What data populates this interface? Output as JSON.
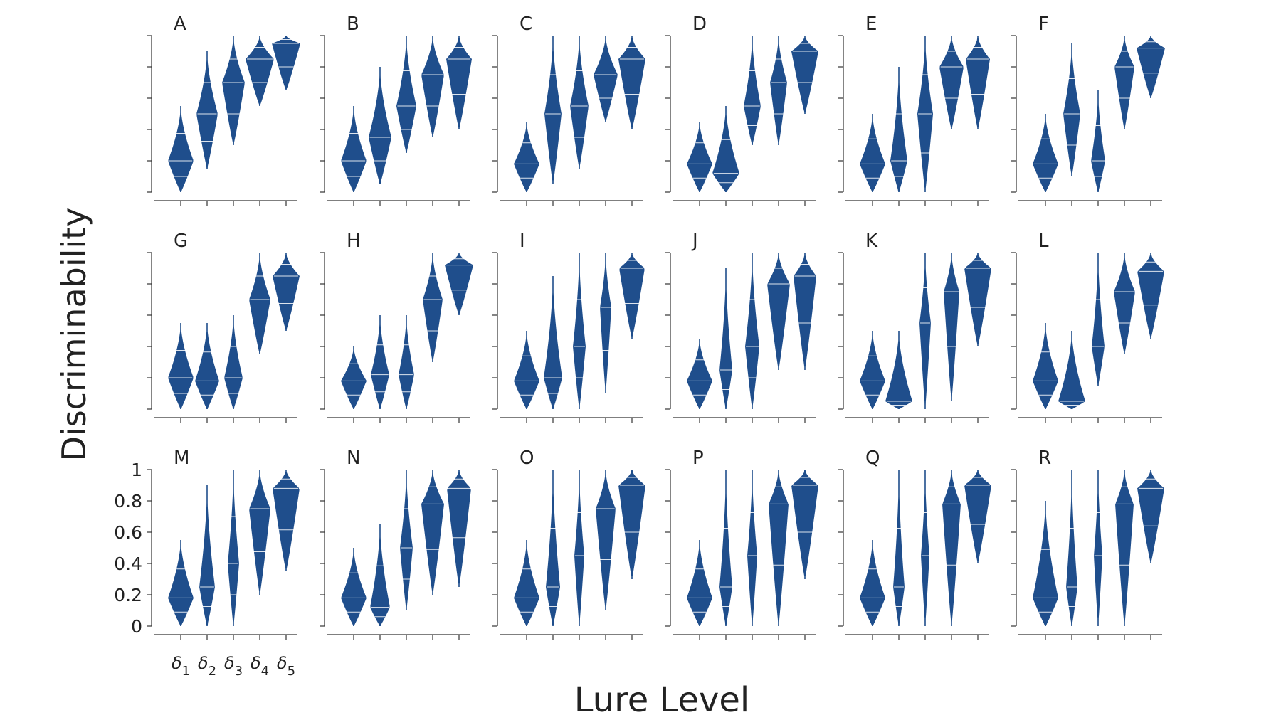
{
  "chart_data": {
    "type": "violin",
    "title": "",
    "xlabel": "Lure Level",
    "ylabel": "Discriminability",
    "ylim": [
      0,
      1
    ],
    "yticks": [
      "0",
      "0.2",
      "0.4",
      "0.6",
      "0.8",
      "1"
    ],
    "categories": [
      "δ1",
      "δ2",
      "δ3",
      "δ4",
      "δ5"
    ],
    "category_labels": [
      {
        "base": "δ",
        "sub": "1"
      },
      {
        "base": "δ",
        "sub": "2"
      },
      {
        "base": "δ",
        "sub": "3"
      },
      {
        "base": "δ",
        "sub": "4"
      },
      {
        "base": "δ",
        "sub": "5"
      }
    ],
    "color": "#1f4e8c",
    "panels": [
      {
        "label": "A",
        "violins": [
          {
            "min": 0.0,
            "max": 0.55,
            "median": 0.2,
            "width": 0.9
          },
          {
            "min": 0.15,
            "max": 0.9,
            "median": 0.5,
            "width": 0.75
          },
          {
            "min": 0.3,
            "max": 1.0,
            "median": 0.7,
            "width": 0.8
          },
          {
            "min": 0.55,
            "max": 1.0,
            "median": 0.85,
            "width": 1.0
          },
          {
            "min": 0.65,
            "max": 1.0,
            "median": 0.95,
            "width": 1.0
          }
        ]
      },
      {
        "label": "B",
        "violins": [
          {
            "min": 0.0,
            "max": 0.55,
            "median": 0.2,
            "width": 0.9
          },
          {
            "min": 0.05,
            "max": 0.8,
            "median": 0.35,
            "width": 0.8
          },
          {
            "min": 0.25,
            "max": 1.0,
            "median": 0.55,
            "width": 0.7
          },
          {
            "min": 0.35,
            "max": 1.0,
            "median": 0.75,
            "width": 0.8
          },
          {
            "min": 0.4,
            "max": 1.0,
            "median": 0.85,
            "width": 0.9
          }
        ]
      },
      {
        "label": "C",
        "violins": [
          {
            "min": 0.0,
            "max": 0.45,
            "median": 0.18,
            "width": 0.9
          },
          {
            "min": 0.05,
            "max": 1.0,
            "median": 0.5,
            "width": 0.6
          },
          {
            "min": 0.15,
            "max": 1.0,
            "median": 0.55,
            "width": 0.65
          },
          {
            "min": 0.45,
            "max": 1.0,
            "median": 0.75,
            "width": 0.85
          },
          {
            "min": 0.4,
            "max": 1.0,
            "median": 0.85,
            "width": 0.95
          }
        ]
      },
      {
        "label": "D",
        "violins": [
          {
            "min": 0.0,
            "max": 0.45,
            "median": 0.18,
            "width": 0.9
          },
          {
            "min": 0.0,
            "max": 0.55,
            "median": 0.12,
            "width": 0.95
          },
          {
            "min": 0.3,
            "max": 1.0,
            "median": 0.55,
            "width": 0.6
          },
          {
            "min": 0.3,
            "max": 1.0,
            "median": 0.7,
            "width": 0.6
          },
          {
            "min": 0.5,
            "max": 1.0,
            "median": 0.9,
            "width": 0.95
          }
        ]
      },
      {
        "label": "E",
        "violins": [
          {
            "min": 0.0,
            "max": 0.5,
            "median": 0.18,
            "width": 0.9
          },
          {
            "min": 0.0,
            "max": 0.8,
            "median": 0.2,
            "width": 0.6
          },
          {
            "min": 0.0,
            "max": 1.0,
            "median": 0.5,
            "width": 0.55
          },
          {
            "min": 0.4,
            "max": 1.0,
            "median": 0.8,
            "width": 0.85
          },
          {
            "min": 0.4,
            "max": 1.0,
            "median": 0.85,
            "width": 0.85
          }
        ]
      },
      {
        "label": "F",
        "violins": [
          {
            "min": 0.0,
            "max": 0.5,
            "median": 0.18,
            "width": 0.9
          },
          {
            "min": 0.1,
            "max": 0.95,
            "median": 0.5,
            "width": 0.6
          },
          {
            "min": 0.0,
            "max": 0.65,
            "median": 0.2,
            "width": 0.5
          },
          {
            "min": 0.4,
            "max": 1.0,
            "median": 0.8,
            "width": 0.7
          },
          {
            "min": 0.6,
            "max": 1.0,
            "median": 0.92,
            "width": 1.0
          }
        ]
      },
      {
        "label": "G",
        "violins": [
          {
            "min": 0.0,
            "max": 0.55,
            "median": 0.2,
            "width": 0.9
          },
          {
            "min": 0.0,
            "max": 0.55,
            "median": 0.18,
            "width": 0.85
          },
          {
            "min": 0.0,
            "max": 0.6,
            "median": 0.2,
            "width": 0.65
          },
          {
            "min": 0.35,
            "max": 1.0,
            "median": 0.7,
            "width": 0.75
          },
          {
            "min": 0.5,
            "max": 1.0,
            "median": 0.85,
            "width": 0.95
          }
        ]
      },
      {
        "label": "H",
        "violins": [
          {
            "min": 0.0,
            "max": 0.4,
            "median": 0.18,
            "width": 0.9
          },
          {
            "min": 0.0,
            "max": 0.6,
            "median": 0.22,
            "width": 0.65
          },
          {
            "min": 0.0,
            "max": 0.6,
            "median": 0.22,
            "width": 0.55
          },
          {
            "min": 0.3,
            "max": 1.0,
            "median": 0.7,
            "width": 0.7
          },
          {
            "min": 0.6,
            "max": 1.0,
            "median": 0.92,
            "width": 1.0
          }
        ]
      },
      {
        "label": "I",
        "violins": [
          {
            "min": 0.0,
            "max": 0.5,
            "median": 0.18,
            "width": 0.9
          },
          {
            "min": 0.0,
            "max": 0.85,
            "median": 0.2,
            "width": 0.65
          },
          {
            "min": 0.0,
            "max": 1.0,
            "median": 0.4,
            "width": 0.45
          },
          {
            "min": 0.1,
            "max": 1.0,
            "median": 0.65,
            "width": 0.4
          },
          {
            "min": 0.45,
            "max": 1.0,
            "median": 0.9,
            "width": 0.9
          }
        ]
      },
      {
        "label": "J",
        "violins": [
          {
            "min": 0.0,
            "max": 0.45,
            "median": 0.18,
            "width": 0.9
          },
          {
            "min": 0.0,
            "max": 0.9,
            "median": 0.25,
            "width": 0.45
          },
          {
            "min": 0.0,
            "max": 1.0,
            "median": 0.4,
            "width": 0.5
          },
          {
            "min": 0.25,
            "max": 1.0,
            "median": 0.8,
            "width": 0.8
          },
          {
            "min": 0.25,
            "max": 1.0,
            "median": 0.85,
            "width": 0.8
          }
        ]
      },
      {
        "label": "K",
        "violins": [
          {
            "min": 0.0,
            "max": 0.5,
            "median": 0.18,
            "width": 0.9
          },
          {
            "min": 0.0,
            "max": 0.5,
            "median": 0.05,
            "width": 0.95
          },
          {
            "min": 0.0,
            "max": 1.0,
            "median": 0.55,
            "width": 0.4
          },
          {
            "min": 0.05,
            "max": 1.0,
            "median": 0.75,
            "width": 0.55
          },
          {
            "min": 0.4,
            "max": 1.0,
            "median": 0.9,
            "width": 0.95
          }
        ]
      },
      {
        "label": "L",
        "violins": [
          {
            "min": 0.0,
            "max": 0.55,
            "median": 0.18,
            "width": 0.9
          },
          {
            "min": 0.0,
            "max": 0.5,
            "median": 0.05,
            "width": 0.95
          },
          {
            "min": 0.15,
            "max": 1.0,
            "median": 0.4,
            "width": 0.45
          },
          {
            "min": 0.35,
            "max": 1.0,
            "median": 0.75,
            "width": 0.75
          },
          {
            "min": 0.45,
            "max": 1.0,
            "median": 0.88,
            "width": 0.95
          }
        ]
      },
      {
        "label": "M",
        "violins": [
          {
            "min": 0.0,
            "max": 0.55,
            "median": 0.18,
            "width": 0.9
          },
          {
            "min": 0.0,
            "max": 0.9,
            "median": 0.25,
            "width": 0.55
          },
          {
            "min": 0.0,
            "max": 1.0,
            "median": 0.4,
            "width": 0.4
          },
          {
            "min": 0.2,
            "max": 1.0,
            "median": 0.75,
            "width": 0.75
          },
          {
            "min": 0.35,
            "max": 1.0,
            "median": 0.88,
            "width": 0.95
          }
        ]
      },
      {
        "label": "N",
        "violins": [
          {
            "min": 0.0,
            "max": 0.5,
            "median": 0.18,
            "width": 0.9
          },
          {
            "min": 0.0,
            "max": 0.65,
            "median": 0.12,
            "width": 0.7
          },
          {
            "min": 0.1,
            "max": 1.0,
            "median": 0.5,
            "width": 0.45
          },
          {
            "min": 0.2,
            "max": 1.0,
            "median": 0.78,
            "width": 0.8
          },
          {
            "min": 0.25,
            "max": 1.0,
            "median": 0.88,
            "width": 0.85
          }
        ]
      },
      {
        "label": "O",
        "violins": [
          {
            "min": 0.0,
            "max": 0.55,
            "median": 0.18,
            "width": 0.9
          },
          {
            "min": 0.0,
            "max": 1.0,
            "median": 0.25,
            "width": 0.5
          },
          {
            "min": 0.0,
            "max": 1.0,
            "median": 0.45,
            "width": 0.35
          },
          {
            "min": 0.1,
            "max": 1.0,
            "median": 0.75,
            "width": 0.7
          },
          {
            "min": 0.3,
            "max": 1.0,
            "median": 0.9,
            "width": 0.95
          }
        ]
      },
      {
        "label": "P",
        "violins": [
          {
            "min": 0.0,
            "max": 0.55,
            "median": 0.18,
            "width": 0.9
          },
          {
            "min": 0.0,
            "max": 1.0,
            "median": 0.25,
            "width": 0.45
          },
          {
            "min": 0.0,
            "max": 1.0,
            "median": 0.45,
            "width": 0.35
          },
          {
            "min": 0.0,
            "max": 1.0,
            "median": 0.78,
            "width": 0.7
          },
          {
            "min": 0.3,
            "max": 1.0,
            "median": 0.9,
            "width": 0.95
          }
        ]
      },
      {
        "label": "Q",
        "violins": [
          {
            "min": 0.0,
            "max": 0.55,
            "median": 0.18,
            "width": 0.9
          },
          {
            "min": 0.0,
            "max": 1.0,
            "median": 0.25,
            "width": 0.4
          },
          {
            "min": 0.0,
            "max": 1.0,
            "median": 0.45,
            "width": 0.3
          },
          {
            "min": 0.0,
            "max": 1.0,
            "median": 0.78,
            "width": 0.65
          },
          {
            "min": 0.4,
            "max": 1.0,
            "median": 0.9,
            "width": 0.95
          }
        ]
      },
      {
        "label": "R",
        "violins": [
          {
            "min": 0.0,
            "max": 0.8,
            "median": 0.18,
            "width": 0.9
          },
          {
            "min": 0.0,
            "max": 1.0,
            "median": 0.25,
            "width": 0.4
          },
          {
            "min": 0.0,
            "max": 1.0,
            "median": 0.45,
            "width": 0.3
          },
          {
            "min": 0.0,
            "max": 1.0,
            "median": 0.78,
            "width": 0.65
          },
          {
            "min": 0.4,
            "max": 1.0,
            "median": 0.88,
            "width": 0.95
          }
        ]
      }
    ]
  }
}
